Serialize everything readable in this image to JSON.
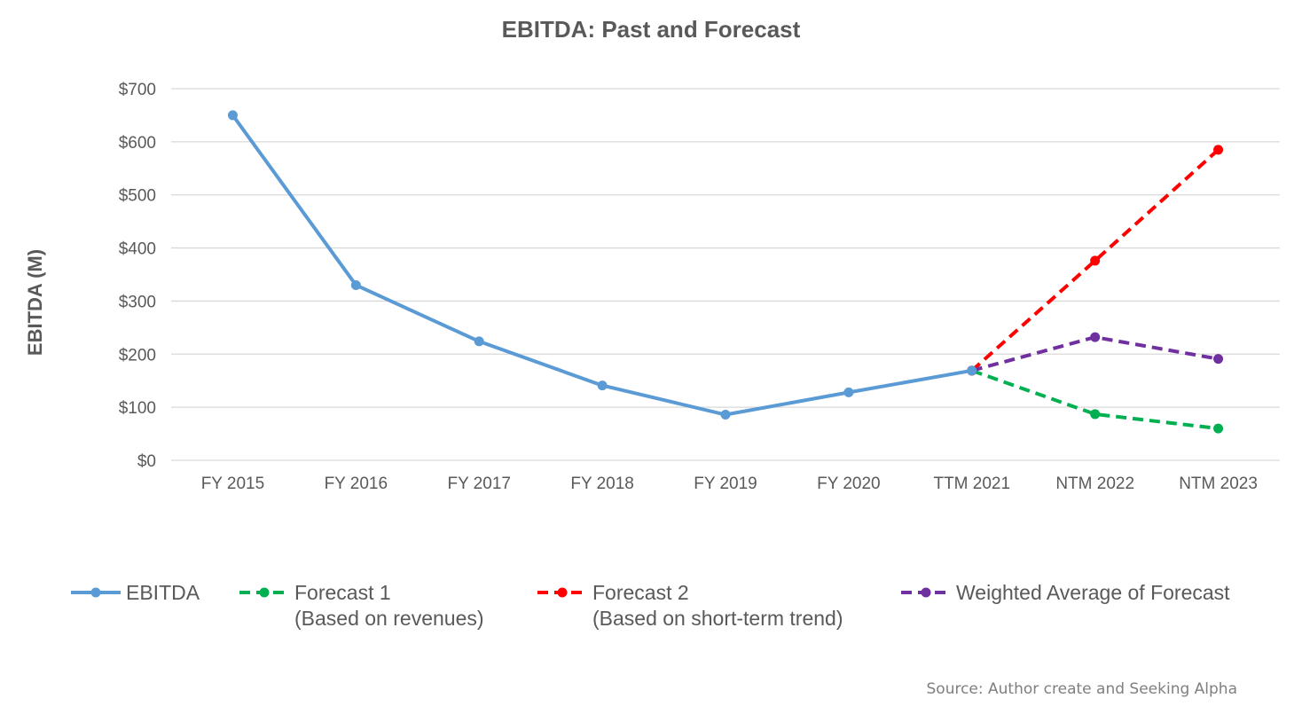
{
  "chart_data": {
    "type": "line",
    "title": "EBITDA: Past and Forecast",
    "xlabel": "",
    "ylabel": "EBITDA (M)",
    "ylim": [
      0,
      700
    ],
    "yticks": [
      "$0",
      "$100",
      "$200",
      "$300",
      "$400",
      "$500",
      "$600",
      "$700"
    ],
    "ytick_values": [
      0,
      100,
      200,
      300,
      400,
      500,
      600,
      700
    ],
    "categories": [
      "FY 2015",
      "FY 2016",
      "FY 2017",
      "FY 2018",
      "FY 2019",
      "FY 2020",
      "TTM 2021",
      "NTM 2022",
      "NTM 2023"
    ],
    "grid": true,
    "legend_position": "bottom",
    "series": [
      {
        "name": "EBITDA",
        "legend_lines": [
          "EBITDA"
        ],
        "color": "#5b9bd5",
        "dashed": false,
        "values": [
          650,
          330,
          224,
          141,
          86,
          128,
          169,
          null,
          null
        ]
      },
      {
        "name": "Forecast 1 (Based on revenues)",
        "legend_lines": [
          "Forecast 1",
          "(Based on revenues)"
        ],
        "color": "#00b050",
        "dashed": true,
        "values": [
          null,
          null,
          null,
          null,
          null,
          null,
          169,
          87,
          60
        ]
      },
      {
        "name": "Forecast 2 (Based on short-term trend)",
        "legend_lines": [
          "Forecast 2",
          "(Based on short-term trend)"
        ],
        "color": "#ff0000",
        "dashed": true,
        "values": [
          null,
          null,
          null,
          null,
          null,
          null,
          169,
          376,
          585
        ]
      },
      {
        "name": "Weighted Average of Forecast",
        "legend_lines": [
          "Weighted Average of Forecast"
        ],
        "color": "#7030a0",
        "dashed": true,
        "values": [
          null,
          null,
          null,
          null,
          null,
          null,
          169,
          232,
          191
        ]
      }
    ],
    "source": "Source: Author create and Seeking Alpha"
  }
}
